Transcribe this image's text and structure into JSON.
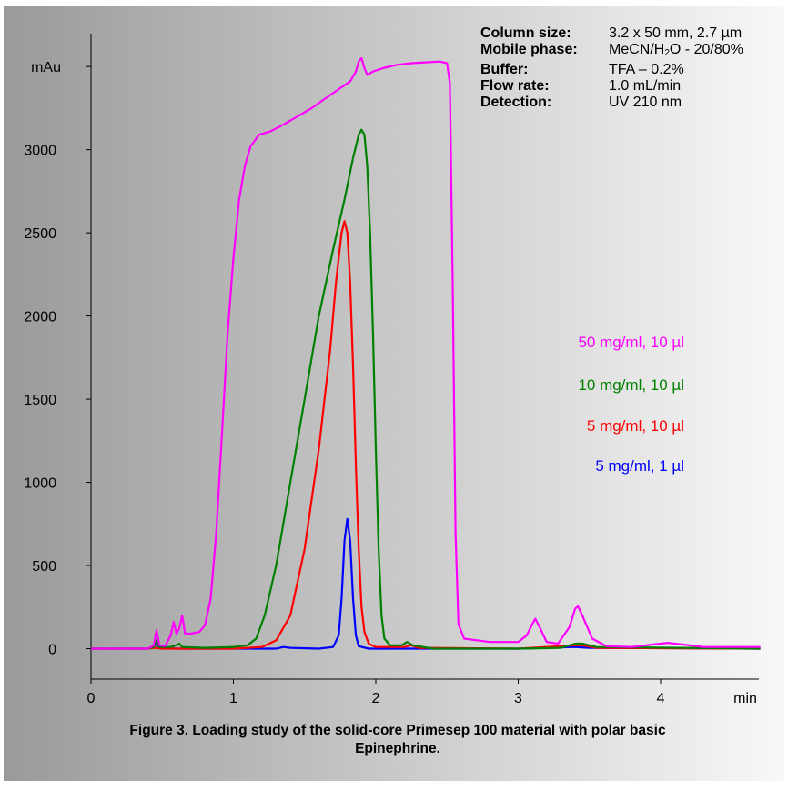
{
  "chart_data": {
    "type": "line",
    "title": "",
    "xlabel": "min",
    "ylabel": "mAu",
    "xlim": [
      0,
      4.7
    ],
    "ylim": [
      -100,
      3700
    ],
    "x_ticks": [
      "0",
      "1",
      "2",
      "3",
      "4"
    ],
    "y_ticks": [
      "0",
      "500",
      "1000",
      "1500",
      "2000",
      "2500",
      "3000"
    ],
    "y_tick_values": [
      0,
      500,
      1000,
      1500,
      2000,
      2500,
      3000
    ],
    "x_tick_values": [
      0,
      1,
      2,
      3,
      4
    ],
    "grid": false,
    "legend_placement": "right",
    "series": [
      {
        "name": "50  mg/ml, 10 µl",
        "color": "#ff00ff",
        "points": [
          [
            0,
            0
          ],
          [
            0.4,
            0
          ],
          [
            0.44,
            20
          ],
          [
            0.46,
            110
          ],
          [
            0.48,
            20
          ],
          [
            0.52,
            15
          ],
          [
            0.56,
            80
          ],
          [
            0.58,
            160
          ],
          [
            0.6,
            90
          ],
          [
            0.62,
            120
          ],
          [
            0.64,
            200
          ],
          [
            0.66,
            90
          ],
          [
            0.7,
            90
          ],
          [
            0.76,
            100
          ],
          [
            0.8,
            140
          ],
          [
            0.84,
            300
          ],
          [
            0.88,
            700
          ],
          [
            0.92,
            1300
          ],
          [
            0.96,
            1900
          ],
          [
            1.0,
            2350
          ],
          [
            1.04,
            2700
          ],
          [
            1.08,
            2900
          ],
          [
            1.12,
            3020
          ],
          [
            1.18,
            3090
          ],
          [
            1.26,
            3110
          ],
          [
            1.35,
            3150
          ],
          [
            1.45,
            3200
          ],
          [
            1.55,
            3250
          ],
          [
            1.65,
            3310
          ],
          [
            1.75,
            3370
          ],
          [
            1.82,
            3410
          ],
          [
            1.86,
            3470
          ],
          [
            1.88,
            3530
          ],
          [
            1.9,
            3550
          ],
          [
            1.92,
            3490
          ],
          [
            1.94,
            3450
          ],
          [
            1.98,
            3470
          ],
          [
            2.05,
            3490
          ],
          [
            2.15,
            3510
          ],
          [
            2.25,
            3520
          ],
          [
            2.35,
            3525
          ],
          [
            2.45,
            3530
          ],
          [
            2.5,
            3520
          ],
          [
            2.52,
            3400
          ],
          [
            2.54,
            2200
          ],
          [
            2.56,
            700
          ],
          [
            2.58,
            150
          ],
          [
            2.62,
            60
          ],
          [
            2.8,
            40
          ],
          [
            3.0,
            40
          ],
          [
            3.06,
            80
          ],
          [
            3.1,
            150
          ],
          [
            3.12,
            180
          ],
          [
            3.15,
            130
          ],
          [
            3.2,
            40
          ],
          [
            3.28,
            30
          ],
          [
            3.36,
            130
          ],
          [
            3.4,
            240
          ],
          [
            3.42,
            255
          ],
          [
            3.45,
            200
          ],
          [
            3.52,
            60
          ],
          [
            3.62,
            15
          ],
          [
            3.8,
            10
          ],
          [
            3.95,
            25
          ],
          [
            4.05,
            35
          ],
          [
            4.15,
            25
          ],
          [
            4.3,
            10
          ],
          [
            4.7,
            10
          ]
        ]
      },
      {
        "name": "10  mg/ml, 10 µl",
        "color": "#008000",
        "points": [
          [
            0,
            0
          ],
          [
            0.4,
            0
          ],
          [
            0.44,
            10
          ],
          [
            0.46,
            50
          ],
          [
            0.48,
            10
          ],
          [
            0.56,
            10
          ],
          [
            0.6,
            20
          ],
          [
            0.62,
            30
          ],
          [
            0.64,
            10
          ],
          [
            0.8,
            5
          ],
          [
            1.0,
            10
          ],
          [
            1.1,
            20
          ],
          [
            1.16,
            60
          ],
          [
            1.22,
            200
          ],
          [
            1.3,
            500
          ],
          [
            1.4,
            1000
          ],
          [
            1.5,
            1500
          ],
          [
            1.6,
            2000
          ],
          [
            1.7,
            2400
          ],
          [
            1.78,
            2700
          ],
          [
            1.84,
            2950
          ],
          [
            1.88,
            3090
          ],
          [
            1.9,
            3120
          ],
          [
            1.92,
            3090
          ],
          [
            1.94,
            2900
          ],
          [
            1.96,
            2500
          ],
          [
            1.98,
            1900
          ],
          [
            2.0,
            1200
          ],
          [
            2.02,
            600
          ],
          [
            2.04,
            200
          ],
          [
            2.06,
            60
          ],
          [
            2.1,
            20
          ],
          [
            2.18,
            20
          ],
          [
            2.22,
            40
          ],
          [
            2.26,
            20
          ],
          [
            2.4,
            0
          ],
          [
            2.6,
            0
          ],
          [
            3.0,
            0
          ],
          [
            3.3,
            5
          ],
          [
            3.4,
            30
          ],
          [
            3.45,
            30
          ],
          [
            3.55,
            10
          ],
          [
            4.7,
            0
          ]
        ]
      },
      {
        "name": "5  mg/ml, 10 µl",
        "color": "#ff0000",
        "points": [
          [
            0,
            0
          ],
          [
            0.4,
            0
          ],
          [
            0.45,
            5
          ],
          [
            0.5,
            0
          ],
          [
            1.0,
            0
          ],
          [
            1.2,
            10
          ],
          [
            1.3,
            50
          ],
          [
            1.4,
            200
          ],
          [
            1.5,
            600
          ],
          [
            1.6,
            1200
          ],
          [
            1.68,
            1800
          ],
          [
            1.72,
            2200
          ],
          [
            1.76,
            2500
          ],
          [
            1.78,
            2570
          ],
          [
            1.8,
            2500
          ],
          [
            1.82,
            2200
          ],
          [
            1.84,
            1700
          ],
          [
            1.86,
            1100
          ],
          [
            1.88,
            600
          ],
          [
            1.9,
            250
          ],
          [
            1.92,
            100
          ],
          [
            1.95,
            30
          ],
          [
            2.0,
            10
          ],
          [
            2.2,
            10
          ],
          [
            2.25,
            20
          ],
          [
            2.3,
            5
          ],
          [
            3.0,
            0
          ],
          [
            3.4,
            20
          ],
          [
            3.45,
            20
          ],
          [
            3.55,
            5
          ],
          [
            4.7,
            0
          ]
        ]
      },
      {
        "name": "5  mg/ml, 1 µl",
        "color": "#0000ff",
        "points": [
          [
            0,
            0
          ],
          [
            0.4,
            0
          ],
          [
            0.44,
            10
          ],
          [
            0.46,
            30
          ],
          [
            0.48,
            5
          ],
          [
            0.6,
            0
          ],
          [
            1.3,
            0
          ],
          [
            1.35,
            10
          ],
          [
            1.4,
            5
          ],
          [
            1.6,
            0
          ],
          [
            1.7,
            10
          ],
          [
            1.74,
            80
          ],
          [
            1.76,
            300
          ],
          [
            1.78,
            650
          ],
          [
            1.8,
            780
          ],
          [
            1.82,
            650
          ],
          [
            1.84,
            300
          ],
          [
            1.86,
            80
          ],
          [
            1.88,
            15
          ],
          [
            1.95,
            0
          ],
          [
            3.0,
            0
          ],
          [
            3.4,
            10
          ],
          [
            3.5,
            5
          ],
          [
            4.7,
            0
          ]
        ]
      }
    ]
  },
  "info": [
    {
      "label": "Column size:",
      "value": "3.2 x 50 mm, 2.7 µm"
    },
    {
      "label": "Mobile phase:",
      "value_pre": "MeCN/H",
      "value_sub": "2",
      "value_post": "O - 20/80%"
    },
    {
      "label": "Buffer:",
      "value": "TFA – 0.2%"
    },
    {
      "label": "Flow rate:",
      "value": "1.0 mL/min"
    },
    {
      "label": "Detection:",
      "value": "UV 210 nm"
    }
  ],
  "caption": {
    "line1": "Figure 3.  Loading study of the solid-core Primesep 100 material with polar basic",
    "line2": "Epinephrine."
  },
  "colors": {
    "background_left": "#9a9a9a",
    "background_right": "#f8f8f8",
    "axis": "#000000"
  }
}
